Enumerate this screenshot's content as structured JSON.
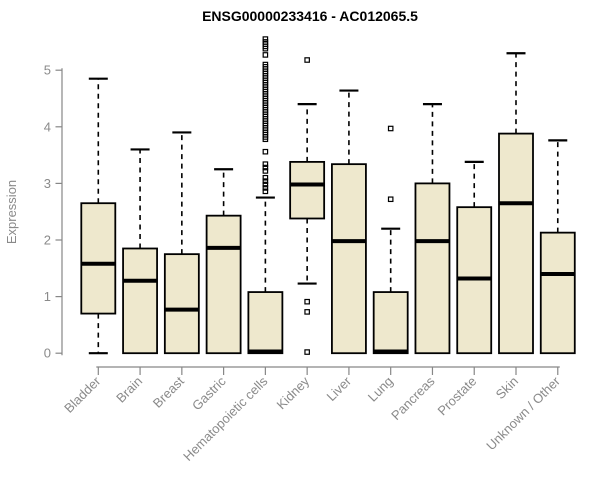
{
  "chart_data": {
    "type": "box",
    "title": "ENSG00000233416 - AC012065.5",
    "xlabel": "",
    "ylabel": "Expression",
    "ylim": [
      0,
      5
    ],
    "yticks": [
      0,
      1,
      2,
      3,
      4,
      5
    ],
    "grid": false,
    "legend": null,
    "categories": [
      "Bladder",
      "Brain",
      "Breast",
      "Gastric",
      "Hematopoietic cells",
      "Kidney",
      "Liver",
      "Lung",
      "Pancreas",
      "Prostate",
      "Skin",
      "Unknown / Other"
    ],
    "series": [
      {
        "name": "Bladder",
        "low": 0,
        "q1": 0.7,
        "median": 1.58,
        "q3": 2.65,
        "high": 4.85,
        "outliers": []
      },
      {
        "name": "Brain",
        "low": 0,
        "q1": 0,
        "median": 1.28,
        "q3": 1.85,
        "high": 3.6,
        "outliers": []
      },
      {
        "name": "Breast",
        "low": 0,
        "q1": 0,
        "median": 0.77,
        "q3": 1.75,
        "high": 3.9,
        "outliers": []
      },
      {
        "name": "Gastric",
        "low": 0,
        "q1": 0,
        "median": 1.86,
        "q3": 2.43,
        "high": 3.25,
        "outliers": []
      },
      {
        "name": "Hematopoietic cells",
        "low": 0,
        "q1": 0,
        "median": 0.03,
        "q3": 1.08,
        "high": 2.75,
        "outliers": [
          2.86,
          2.92,
          2.98,
          3.04,
          3.1,
          3.22,
          3.28,
          3.34,
          3.56,
          3.78,
          3.82,
          3.86,
          3.9,
          3.94,
          3.98,
          4.02,
          4.06,
          4.1,
          4.14,
          4.18,
          4.22,
          4.26,
          4.3,
          4.34,
          4.38,
          4.42,
          4.46,
          4.5,
          4.54,
          4.58,
          4.62,
          4.66,
          4.7,
          4.74,
          4.78,
          4.82,
          4.86,
          4.9,
          4.94,
          4.98,
          5.02,
          5.06,
          5.1,
          5.27,
          5.38,
          5.42,
          5.46,
          5.5,
          5.55
        ]
      },
      {
        "name": "Kidney",
        "low": 1.23,
        "q1": 2.38,
        "median": 2.98,
        "q3": 3.38,
        "high": 4.4,
        "outliers": [
          5.18,
          0.91,
          0.73,
          0.02
        ]
      },
      {
        "name": "Liver",
        "low": 0,
        "q1": 0,
        "median": 1.98,
        "q3": 3.34,
        "high": 4.64,
        "outliers": []
      },
      {
        "name": "Lung",
        "low": 0,
        "q1": 0,
        "median": 0.03,
        "q3": 1.08,
        "high": 2.2,
        "outliers": [
          2.72,
          3.97
        ]
      },
      {
        "name": "Pancreas",
        "low": 0,
        "q1": 0,
        "median": 1.98,
        "q3": 3.0,
        "high": 4.4,
        "outliers": []
      },
      {
        "name": "Prostate",
        "low": 0,
        "q1": 0,
        "median": 1.32,
        "q3": 2.58,
        "high": 3.38,
        "outliers": []
      },
      {
        "name": "Skin",
        "low": 0,
        "q1": 0,
        "median": 2.65,
        "q3": 3.88,
        "high": 5.3,
        "outliers": []
      },
      {
        "name": "Unknown / Other",
        "low": 0,
        "q1": 0,
        "median": 1.4,
        "q3": 2.13,
        "high": 3.76,
        "outliers": []
      }
    ],
    "style": {
      "box_fill": "#EEE8CD",
      "box_stroke": "#000000",
      "median_color": "#000000",
      "whisker_color": "#000000",
      "outlier_marker": "open-square",
      "axis_color": "#878787",
      "tick_label_color": "#8a8a8a",
      "title_color": "#000000",
      "background": "#ffffff"
    }
  }
}
